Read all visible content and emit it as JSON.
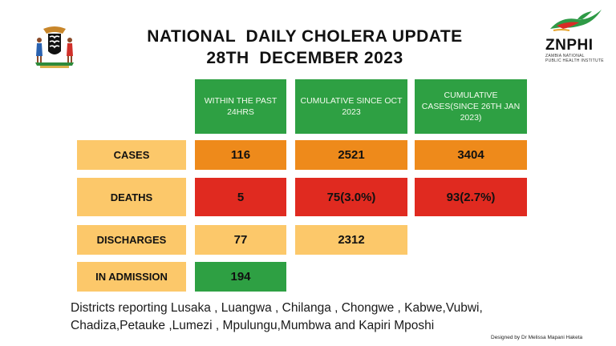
{
  "title": {
    "line1": "NATIONAL  DAILY CHOLERA UPDATE",
    "line2": "28TH  DECEMBER 2023"
  },
  "logo": {
    "name": "ZNPHI",
    "subtitle_line1": "ZAMBIA NATIONAL",
    "subtitle_line2": "PUBLIC HEALTH INSTITUTE"
  },
  "colors": {
    "green": "#2ea043",
    "orange": "#ee8a1b",
    "red": "#e02a20",
    "light_orange": "#fcc86a"
  },
  "table": {
    "headers": [
      "WITHIN THE PAST 24HRS",
      "CUMULATIVE SINCE OCT 2023",
      "CUMULATIVE CASES(SINCE 26TH JAN 2023)"
    ],
    "rows": [
      {
        "label": "CASES",
        "values": [
          "116",
          "2521",
          "3404"
        ]
      },
      {
        "label": "DEATHS",
        "values": [
          "5",
          "75(3.0%)",
          "93(2.7%)"
        ]
      },
      {
        "label": "DISCHARGES",
        "values": [
          "77",
          "2312"
        ]
      },
      {
        "label": "IN ADMISSION",
        "values": [
          "194"
        ]
      }
    ]
  },
  "districts": {
    "line1": "Districts reporting Lusaka , Luangwa , Chilanga , Chongwe , Kabwe,Vubwi,",
    "line2": "Chadiza,Petauke ,Lumezi , Mpulungu,Mumbwa  and Kapiri Mposhi"
  },
  "credit": "Designed by Dr Melissa Mapani Haketa"
}
